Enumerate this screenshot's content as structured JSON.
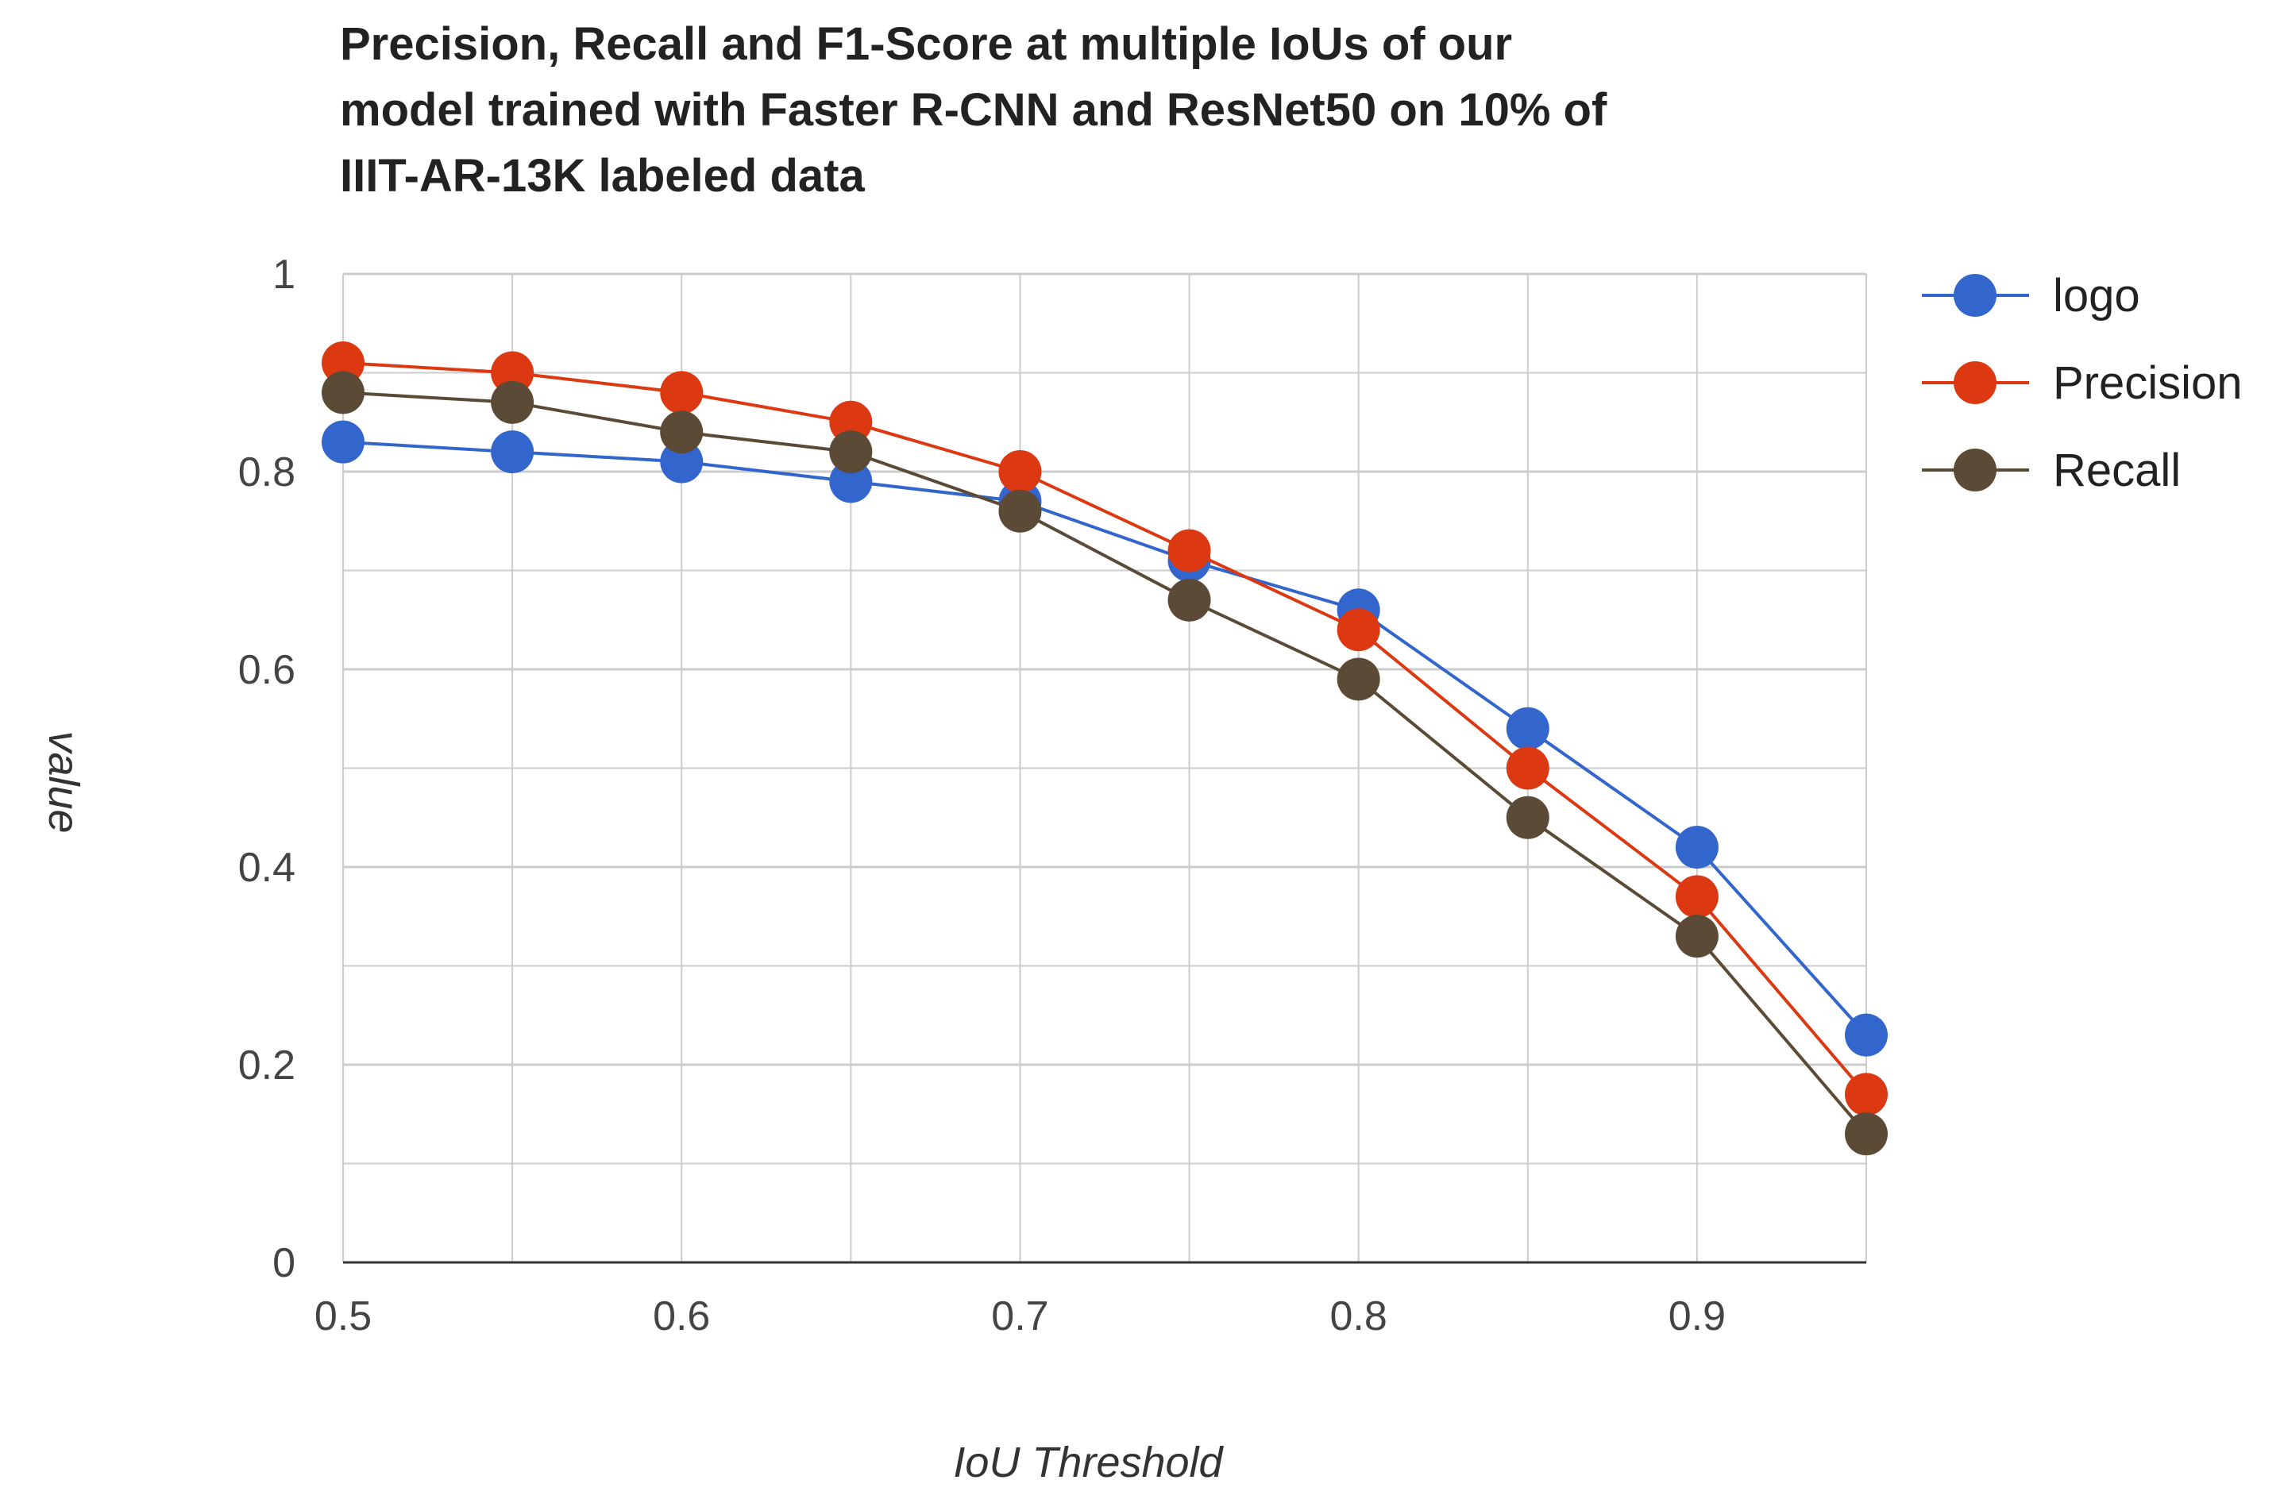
{
  "chart_data": {
    "type": "line",
    "title_lines": [
      "Precision, Recall and F1-Score at multiple IoUs of our",
      "model trained with Faster R-CNN and ResNet50 on 10% of",
      "IIIT-AR-13K labeled data"
    ],
    "xlabel": "IoU Threshold",
    "ylabel": "value",
    "xlim": [
      0.5,
      0.95
    ],
    "ylim": [
      0,
      1
    ],
    "x_ticks": [
      "0.5",
      "0.6",
      "0.7",
      "0.8",
      "0.9"
    ],
    "y_ticks": [
      "0",
      "0.2",
      "0.4",
      "0.6",
      "0.8",
      "1"
    ],
    "grid": true,
    "legend_position": "right",
    "x": [
      0.5,
      0.55,
      0.6,
      0.65,
      0.7,
      0.75,
      0.8,
      0.85,
      0.9,
      0.95
    ],
    "series": [
      {
        "name": "logo",
        "color": "#3366cc",
        "values": [
          0.83,
          0.82,
          0.81,
          0.79,
          0.77,
          0.71,
          0.66,
          0.54,
          0.42,
          0.23
        ]
      },
      {
        "name": "Precision",
        "color": "#dc3912",
        "values": [
          0.91,
          0.9,
          0.88,
          0.85,
          0.8,
          0.72,
          0.64,
          0.5,
          0.37,
          0.17
        ]
      },
      {
        "name": "Recall",
        "color": "#5b4a36",
        "values": [
          0.88,
          0.87,
          0.84,
          0.82,
          0.76,
          0.67,
          0.59,
          0.45,
          0.33,
          0.13
        ]
      }
    ]
  }
}
